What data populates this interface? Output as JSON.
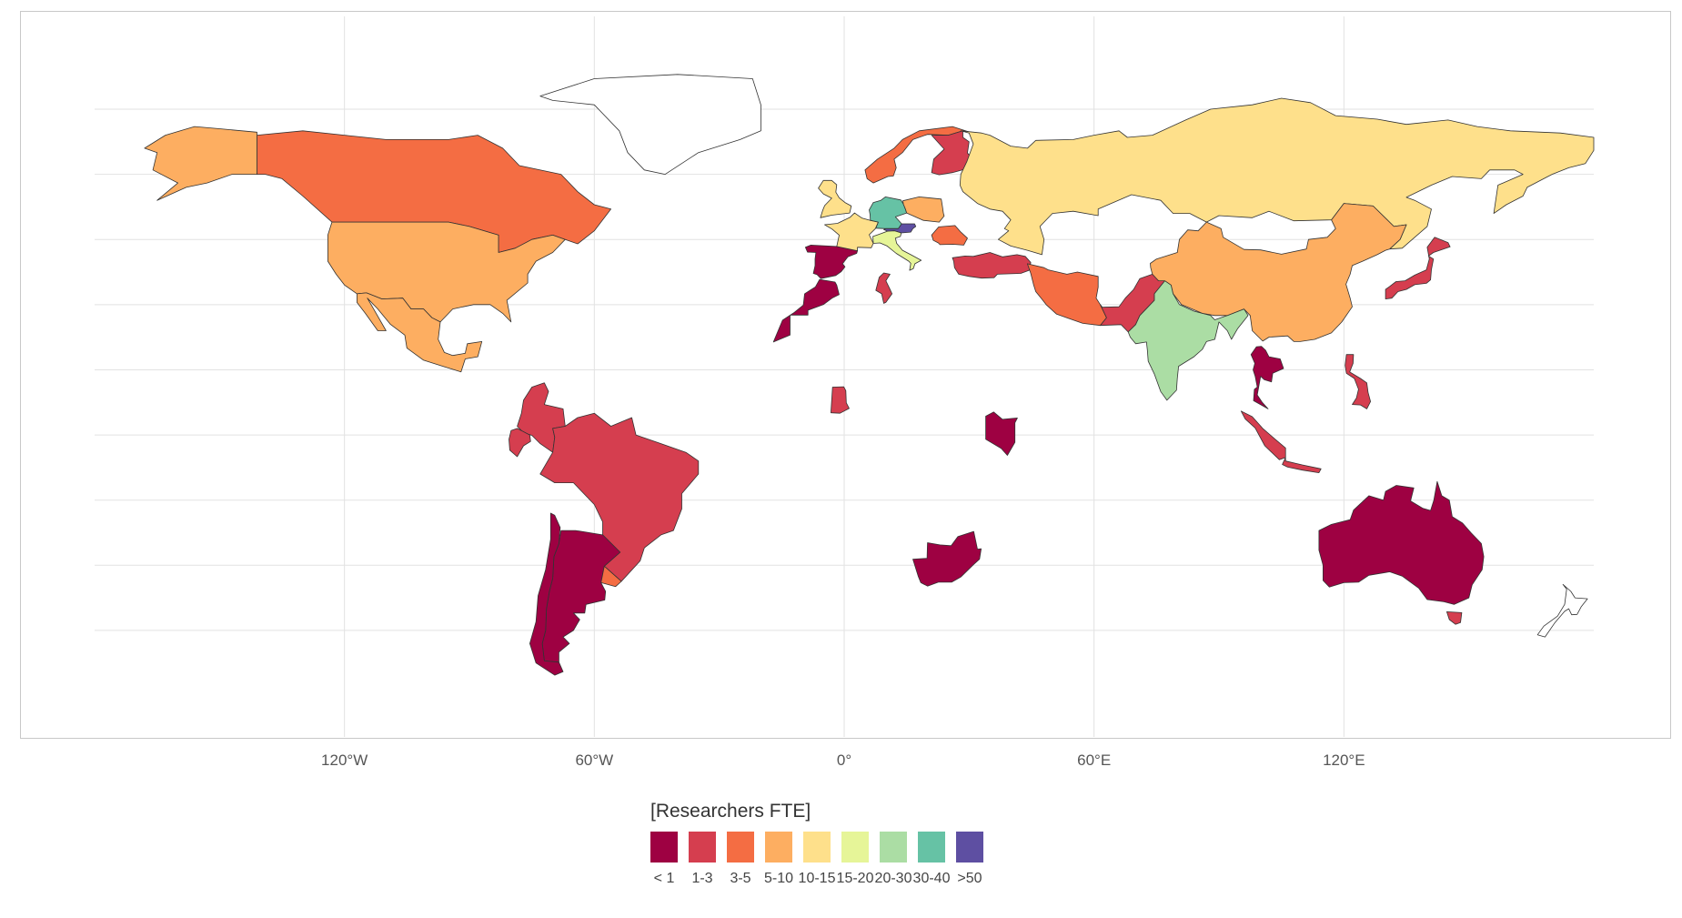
{
  "map": {
    "x_axis": {
      "ticks": [
        {
          "label": "120°W",
          "lon": -120
        },
        {
          "label": "60°W",
          "lon": -60
        },
        {
          "label": "0°",
          "lon": 0
        },
        {
          "label": "60°E",
          "lon": 60
        },
        {
          "label": "120°E",
          "lon": 120
        }
      ]
    },
    "grid": true,
    "no_data_color": "#ffffff",
    "countries": [
      {
        "name": "Canada",
        "class": "3-5"
      },
      {
        "name": "Greenland",
        "class": "none"
      },
      {
        "name": "Alaska",
        "class": "5-10"
      },
      {
        "name": "United States",
        "class": "5-10"
      },
      {
        "name": "Mexico",
        "class": "5-10"
      },
      {
        "name": "Colombia",
        "class": "1-3"
      },
      {
        "name": "Ecuador",
        "class": "1-3"
      },
      {
        "name": "Brazil",
        "class": "1-3"
      },
      {
        "name": "Argentina",
        "class": "< 1"
      },
      {
        "name": "Chile",
        "class": "< 1"
      },
      {
        "name": "Uruguay",
        "class": "3-5"
      },
      {
        "name": "Spain",
        "class": "< 1"
      },
      {
        "name": "Morocco",
        "class": "< 1"
      },
      {
        "name": "France",
        "class": "10-15"
      },
      {
        "name": "United Kingdom",
        "class": "10-15"
      },
      {
        "name": "Norway",
        "class": "3-5"
      },
      {
        "name": "Finland",
        "class": "1-3"
      },
      {
        "name": "Germany",
        "class": "30-40"
      },
      {
        "name": "Austria",
        "class": ">50"
      },
      {
        "name": "Italy",
        "class": "15-20"
      },
      {
        "name": "Poland",
        "class": "5-10"
      },
      {
        "name": "Romania",
        "class": "3-5"
      },
      {
        "name": "Turkey",
        "class": "1-3"
      },
      {
        "name": "Tunisia",
        "class": "1-3"
      },
      {
        "name": "Russia",
        "class": "10-15"
      },
      {
        "name": "Iran",
        "class": "3-5"
      },
      {
        "name": "Pakistan",
        "class": "1-3"
      },
      {
        "name": "India",
        "class": "20-30"
      },
      {
        "name": "China",
        "class": "5-10"
      },
      {
        "name": "Japan",
        "class": "1-3"
      },
      {
        "name": "Thailand",
        "class": "< 1"
      },
      {
        "name": "Indonesia",
        "class": "1-3"
      },
      {
        "name": "Philippines",
        "class": "1-3"
      },
      {
        "name": "Ghana",
        "class": "1-3"
      },
      {
        "name": "Kenya",
        "class": "< 1"
      },
      {
        "name": "South Africa",
        "class": "< 1"
      },
      {
        "name": "Australia",
        "class": "< 1"
      },
      {
        "name": "Tasmania",
        "class": "1-3"
      },
      {
        "name": "New Zealand",
        "class": "none"
      }
    ]
  },
  "legend": {
    "title": "[Researchers FTE]",
    "items": [
      {
        "label": "< 1",
        "color": "#9e0142"
      },
      {
        "label": "1-3",
        "color": "#d53e4f"
      },
      {
        "label": "3-5",
        "color": "#f46d43"
      },
      {
        "label": "5-10",
        "color": "#fdae61"
      },
      {
        "label": "10-15",
        "color": "#fee08b"
      },
      {
        "label": "15-20",
        "color": "#e6f598"
      },
      {
        "label": "20-30",
        "color": "#abdda4"
      },
      {
        "label": "30-40",
        "color": "#66c2a5"
      },
      {
        "label": ">50",
        "color": "#5e4fa2"
      }
    ]
  }
}
